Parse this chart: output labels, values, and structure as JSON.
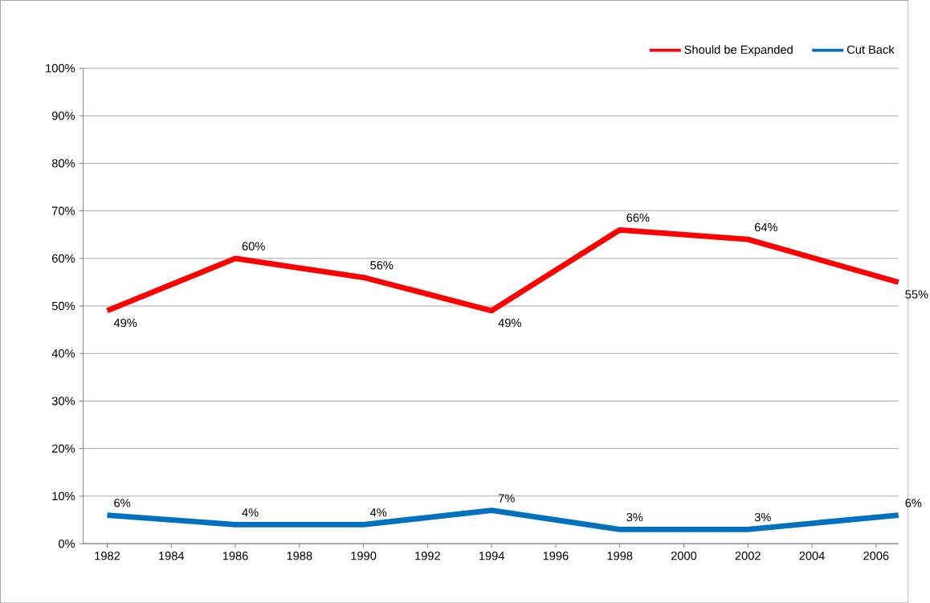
{
  "chart_data": {
    "type": "line",
    "x": [
      1982,
      1986,
      1990,
      1994,
      1998,
      2002,
      2006.7
    ],
    "xlim": [
      1981.25,
      2006.7
    ],
    "xticks": [
      1982,
      1984,
      1986,
      1988,
      1990,
      1992,
      1994,
      1996,
      1998,
      2000,
      2002,
      2004,
      2006
    ],
    "ylim": [
      0,
      100
    ],
    "yticks": [
      {
        "value": 0,
        "label": "0%"
      },
      {
        "value": 10,
        "label": "10%"
      },
      {
        "value": 20,
        "label": "20%"
      },
      {
        "value": 30,
        "label": "30%"
      },
      {
        "value": 40,
        "label": "40%"
      },
      {
        "value": 50,
        "label": "50%"
      },
      {
        "value": 60,
        "label": "60%"
      },
      {
        "value": 70,
        "label": "70%"
      },
      {
        "value": 80,
        "label": "80%"
      },
      {
        "value": 90,
        "label": "90%"
      },
      {
        "value": 100,
        "label": "100%"
      }
    ],
    "grid": "y",
    "legend": "top right",
    "marker": "none",
    "line_style": "solid",
    "series": [
      {
        "name": "Should be Expanded",
        "color": "#ff0000",
        "values": [
          49,
          60,
          56,
          49,
          66,
          64,
          55
        ],
        "value_labels": [
          "49%",
          "60%",
          "56%",
          "49%",
          "66%",
          "64%",
          "55%"
        ]
      },
      {
        "name": "Cut Back",
        "color": "#0070c0",
        "values": [
          6,
          4,
          4,
          7,
          3,
          3,
          6
        ],
        "value_labels": [
          "6%",
          "4%",
          "4%",
          "7%",
          "3%",
          "3%",
          "6%"
        ]
      }
    ]
  }
}
